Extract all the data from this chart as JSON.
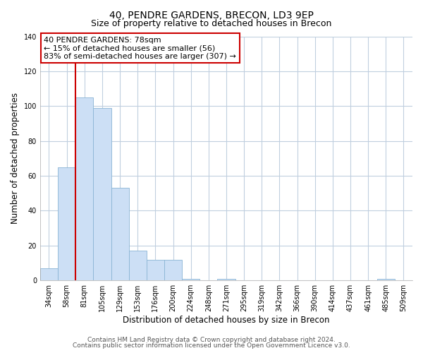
{
  "title": "40, PENDRE GARDENS, BRECON, LD3 9EP",
  "subtitle": "Size of property relative to detached houses in Brecon",
  "xlabel": "Distribution of detached houses by size in Brecon",
  "ylabel": "Number of detached properties",
  "categories": [
    "34sqm",
    "58sqm",
    "81sqm",
    "105sqm",
    "129sqm",
    "153sqm",
    "176sqm",
    "200sqm",
    "224sqm",
    "248sqm",
    "271sqm",
    "295sqm",
    "319sqm",
    "342sqm",
    "366sqm",
    "390sqm",
    "414sqm",
    "437sqm",
    "461sqm",
    "485sqm",
    "509sqm"
  ],
  "values": [
    7,
    65,
    105,
    99,
    53,
    17,
    12,
    12,
    1,
    0,
    1,
    0,
    0,
    0,
    0,
    0,
    0,
    0,
    0,
    1,
    0
  ],
  "bar_color": "#ccdff5",
  "bar_edge_color": "#8ab4d4",
  "vline_color": "#cc0000",
  "ylim": [
    0,
    140
  ],
  "yticks": [
    0,
    20,
    40,
    60,
    80,
    100,
    120,
    140
  ],
  "annotation_box_text": "40 PENDRE GARDENS: 78sqm\n← 15% of detached houses are smaller (56)\n83% of semi-detached houses are larger (307) →",
  "footer_line1": "Contains HM Land Registry data © Crown copyright and database right 2024.",
  "footer_line2": "Contains public sector information licensed under the Open Government Licence v3.0.",
  "background_color": "#ffffff",
  "grid_color": "#c0cfdf",
  "title_fontsize": 10,
  "subtitle_fontsize": 9,
  "axis_label_fontsize": 8.5,
  "tick_fontsize": 7,
  "annotation_fontsize": 8,
  "footer_fontsize": 6.5
}
